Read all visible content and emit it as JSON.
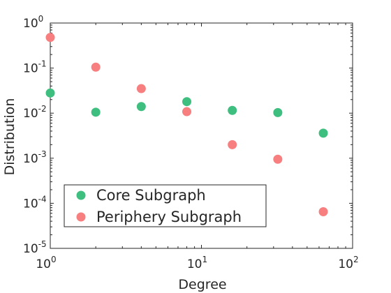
{
  "chart_data": {
    "type": "scatter",
    "xlabel": "Degree",
    "ylabel": "Distribution",
    "xscale": "log",
    "yscale": "log",
    "xlim": [
      1,
      100
    ],
    "ylim": [
      1e-05,
      1
    ],
    "grid": false,
    "legend_position": "bottom-left",
    "x_ticks": [
      {
        "base": "10",
        "exp": "0",
        "value": 1
      },
      {
        "base": "10",
        "exp": "1",
        "value": 10
      },
      {
        "base": "10",
        "exp": "2",
        "value": 100
      }
    ],
    "y_ticks": [
      {
        "base": "10",
        "exp": "0",
        "value": 1
      },
      {
        "base": "10",
        "exp": "-1",
        "value": 0.1
      },
      {
        "base": "10",
        "exp": "-2",
        "value": 0.01
      },
      {
        "base": "10",
        "exp": "-3",
        "value": 0.001
      },
      {
        "base": "10",
        "exp": "-4",
        "value": 0.0001
      },
      {
        "base": "10",
        "exp": "-5",
        "value": 1e-05
      }
    ],
    "series": [
      {
        "name": "Core Subgraph",
        "color": "#3fbf7f",
        "x": [
          1,
          2,
          4,
          8,
          16,
          32,
          64
        ],
        "y": [
          0.028,
          0.0105,
          0.014,
          0.018,
          0.0115,
          0.0103,
          0.0036
        ]
      },
      {
        "name": "Periphery Subgraph",
        "color": "#f77f7f",
        "x": [
          1,
          2,
          4,
          8,
          16,
          32,
          64
        ],
        "y": [
          0.48,
          0.105,
          0.035,
          0.0108,
          0.002,
          0.00095,
          6.5e-05
        ]
      }
    ]
  }
}
